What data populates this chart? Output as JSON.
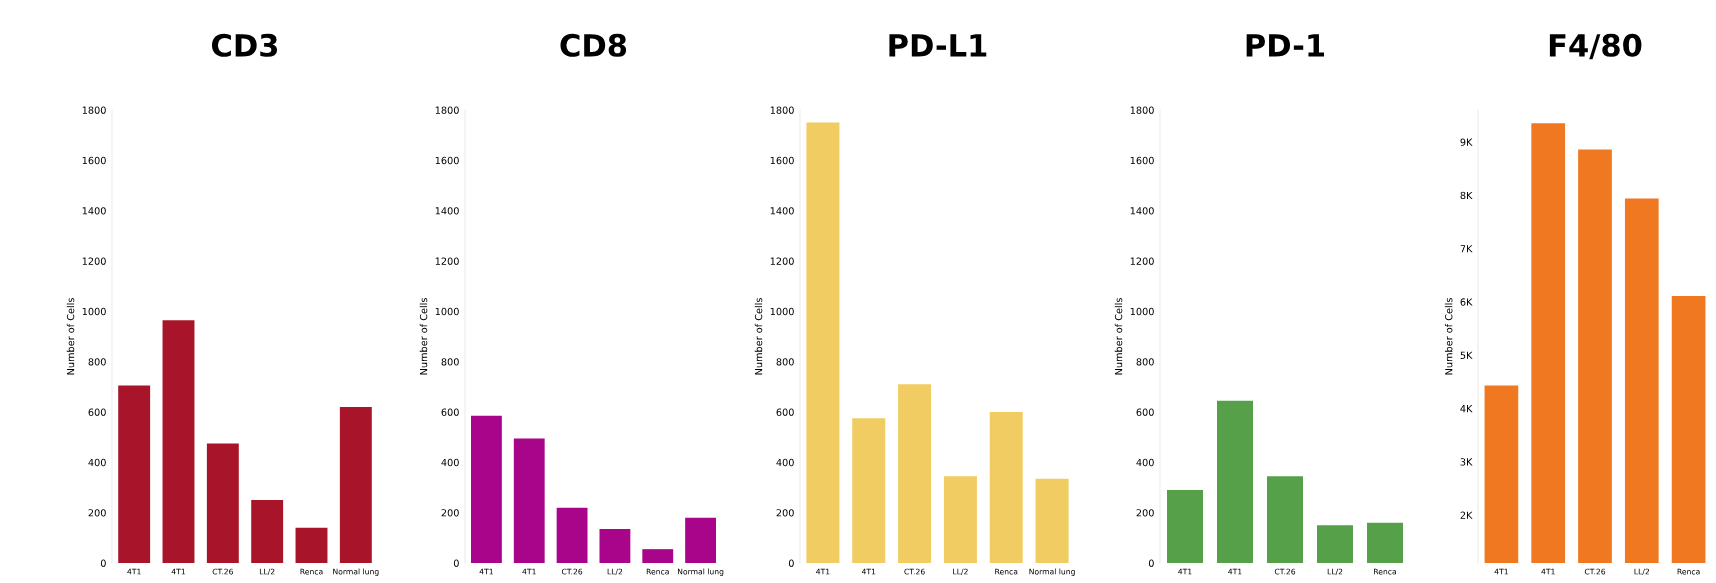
{
  "chart_data": [
    {
      "type": "bar",
      "title": "CD3",
      "ylabel": "Number of Cells",
      "categories": [
        "4T1",
        "4T1",
        "CT.26",
        "LL/2",
        "Renca",
        "Normal lung"
      ],
      "values": [
        705,
        965,
        475,
        250,
        140,
        620
      ],
      "color": "#a8152a",
      "ylim": [
        0,
        1800
      ],
      "yticks": [
        0,
        200,
        400,
        600,
        800,
        1000,
        1200,
        1400,
        1600,
        1800
      ]
    },
    {
      "type": "bar",
      "title": "CD8",
      "ylabel": "Number of Cells",
      "categories": [
        "4T1",
        "4T1",
        "CT.26",
        "LL/2",
        "Renca",
        "Normal lung"
      ],
      "values": [
        585,
        495,
        220,
        135,
        55,
        180
      ],
      "color": "#a8058a",
      "ylim": [
        0,
        1800
      ],
      "yticks": [
        0,
        200,
        400,
        600,
        800,
        1000,
        1200,
        1400,
        1600,
        1800
      ]
    },
    {
      "type": "bar",
      "title": "PD-L1",
      "ylabel": "Number of Cells",
      "categories": [
        "4T1",
        "4T1",
        "CT.26",
        "LL/2",
        "Renca",
        "Normal lung"
      ],
      "values": [
        1750,
        575,
        710,
        345,
        600,
        335
      ],
      "color": "#f0cc62",
      "ylim": [
        0,
        1800
      ],
      "yticks": [
        0,
        200,
        400,
        600,
        800,
        1000,
        1200,
        1400,
        1600,
        1800
      ]
    },
    {
      "type": "bar",
      "title": "PD-1",
      "ylabel": "Number of Cells",
      "categories": [
        "4T1",
        "4T1",
        "CT.26",
        "LL/2",
        "Renca"
      ],
      "values": [
        290,
        645,
        345,
        150,
        160
      ],
      "color": "#56a04a",
      "ylim": [
        0,
        1800
      ],
      "yticks": [
        0,
        200,
        400,
        600,
        800,
        1000,
        1200,
        1400,
        1600,
        1800
      ]
    },
    {
      "type": "bar",
      "title": "F4/80",
      "ylabel": "Number of Cells",
      "categories": [
        "4T1",
        "4T1",
        "CT.26",
        "LL/2",
        "Renca"
      ],
      "values": [
        4430,
        9350,
        8860,
        7940,
        6110
      ],
      "color": "#f07820",
      "ylim": [
        1100,
        9600
      ],
      "yticks": [
        {
          "value": 2000,
          "label": "2K"
        },
        {
          "value": 3000,
          "label": "3K"
        },
        {
          "value": 4000,
          "label": "4K"
        },
        {
          "value": 5000,
          "label": "5K"
        },
        {
          "value": 6000,
          "label": "6K"
        },
        {
          "value": 7000,
          "label": "7K"
        },
        {
          "value": 8000,
          "label": "8K"
        },
        {
          "value": 9000,
          "label": "9K"
        }
      ]
    }
  ]
}
